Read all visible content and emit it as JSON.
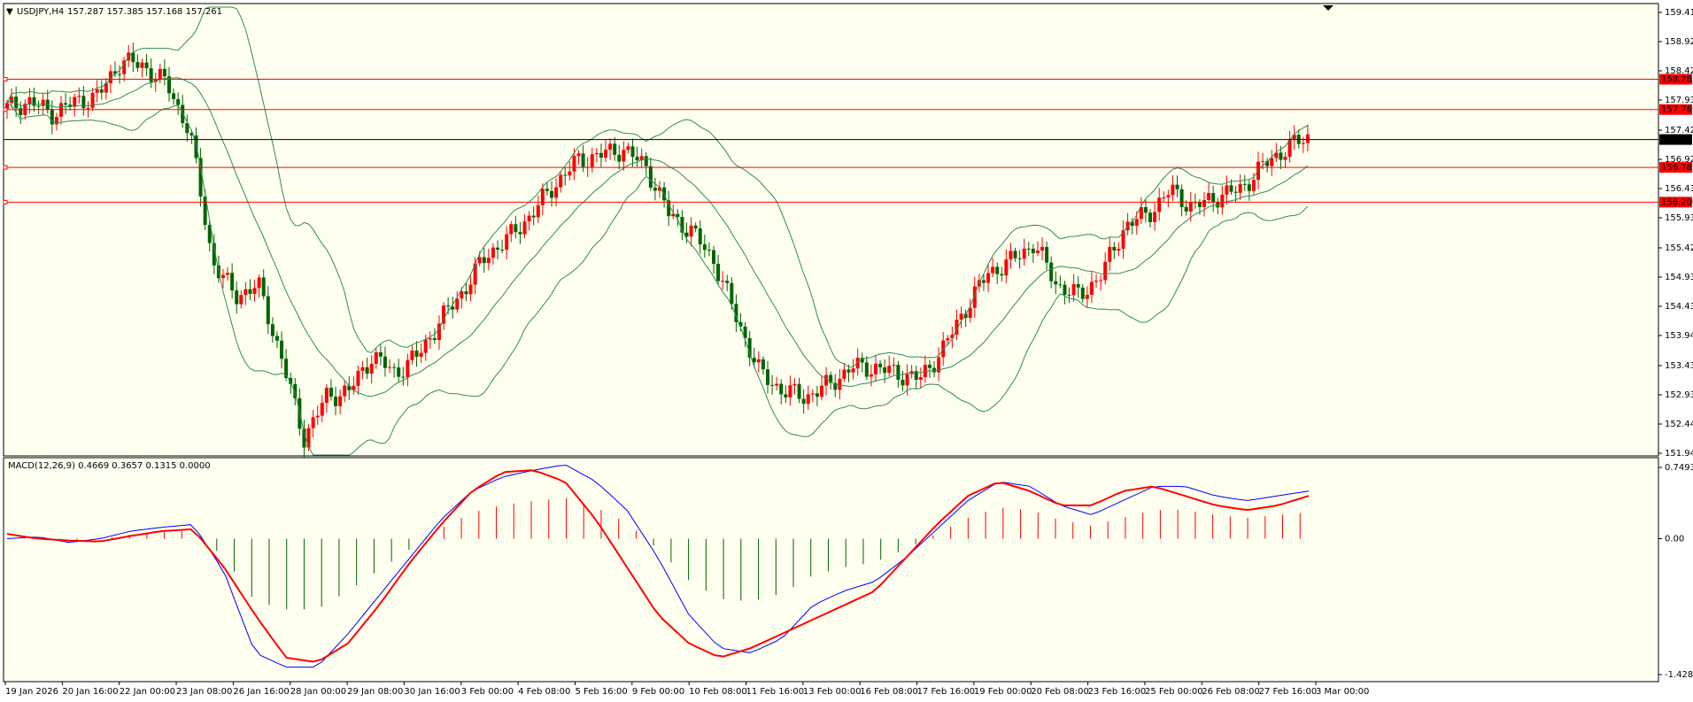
{
  "chart_data": [
    {
      "type": "candlestick",
      "title": "USDJPY,H4",
      "ohlc_header": "157.287 157.385 157.168 157.261",
      "y_ticks": [
        "159.415",
        "158.920",
        "158.425",
        "157.930",
        "157.420",
        "156.925",
        "156.430",
        "155.935",
        "155.425",
        "154.930",
        "154.435",
        "153.940",
        "153.430",
        "152.935",
        "152.440",
        "151.945"
      ],
      "ylim": [
        151.945,
        159.415
      ],
      "current_price": 157.261,
      "current_price_label": "157.261",
      "horizontal_levels": [
        {
          "value": 158.282,
          "label": "158.282"
        },
        {
          "value": 157.769,
          "label": "157.769"
        },
        {
          "value": 156.789,
          "label": "156.789"
        },
        {
          "value": 156.2,
          "label": "156.200"
        }
      ],
      "indicator": "Bollinger Bands",
      "close_path": [
        157.8,
        157.9,
        157.7,
        157.9,
        158.0,
        158.6,
        158.5,
        158.2,
        157.4,
        155.2,
        154.6,
        154.8,
        153.6,
        152.2,
        152.9,
        153.0,
        153.6,
        153.3,
        153.6,
        154.2,
        154.7,
        155.3,
        155.6,
        156.0,
        156.5,
        156.9,
        157.0,
        157.1,
        156.8,
        156.0,
        155.7,
        155.2,
        154.2,
        153.3,
        153.0,
        152.9,
        153.1,
        153.4,
        153.4,
        153.3,
        153.2,
        153.7,
        154.4,
        155.0,
        155.2,
        155.5,
        154.8,
        154.6,
        155.0,
        155.8,
        156.0,
        156.4,
        156.1,
        156.3,
        156.4,
        156.8,
        157.1,
        157.3
      ]
    },
    {
      "type": "histogram+line",
      "title": "MACD(12,26,9) 0.4669 0.3657 0.1315 0.0000",
      "y_ticks": [
        "0.7493",
        "0.00",
        "-1.4282"
      ],
      "ylim": [
        -1.4282,
        0.7493
      ],
      "series": [
        {
          "name": "",
          "color": "#0000ff",
          "values": [
            0.0,
            0.02,
            -0.04,
            0.0,
            0.08,
            0.12,
            0.15,
            -0.35,
            -1.2,
            -1.35,
            -1.35,
            -1.0,
            -0.6,
            -0.2,
            0.2,
            0.5,
            0.65,
            0.72,
            0.78,
            0.6,
            0.3,
            -0.2,
            -0.8,
            -1.15,
            -1.2,
            -1.05,
            -0.7,
            -0.55,
            -0.45,
            -0.2,
            0.1,
            0.4,
            0.6,
            0.55,
            0.35,
            0.25,
            0.4,
            0.55,
            0.55,
            0.45,
            0.4,
            0.45,
            0.5
          ]
        },
        {
          "name": "",
          "color": "#ff0000",
          "values": [
            0.05,
            0.0,
            -0.02,
            -0.03,
            0.03,
            0.08,
            0.1,
            -0.3,
            -0.8,
            -1.25,
            -1.3,
            -1.1,
            -0.7,
            -0.25,
            0.15,
            0.5,
            0.7,
            0.72,
            0.6,
            0.2,
            -0.3,
            -0.8,
            -1.1,
            -1.25,
            -1.15,
            -1.0,
            -0.85,
            -0.7,
            -0.55,
            -0.2,
            0.15,
            0.45,
            0.6,
            0.5,
            0.35,
            0.35,
            0.5,
            0.55,
            0.45,
            0.35,
            0.3,
            0.35,
            0.45
          ]
        }
      ]
    }
  ],
  "x_labels": [
    "19 Jan 2026",
    "20 Jan 16:00",
    "22 Jan 00:00",
    "23 Jan 08:00",
    "26 Jan 16:00",
    "28 Jan 00:00",
    "29 Jan 08:00",
    "30 Jan 16:00",
    "3 Feb 00:00",
    "4 Feb 08:00",
    "5 Feb 16:00",
    "9 Feb 00:00",
    "10 Feb 08:00",
    "11 Feb 16:00",
    "13 Feb 00:00",
    "16 Feb 08:00",
    "17 Feb 16:00",
    "19 Feb 00:00",
    "20 Feb 08:00",
    "23 Feb 16:00",
    "25 Feb 00:00",
    "26 Feb 08:00",
    "27 Feb 16:00",
    "3 Mar 00:00"
  ],
  "colors": {
    "background": "#fffff0",
    "bull": "#ff0000",
    "bear": "#006400",
    "band": "#2e8b57",
    "level": "#ff0000",
    "current": "#000000"
  }
}
